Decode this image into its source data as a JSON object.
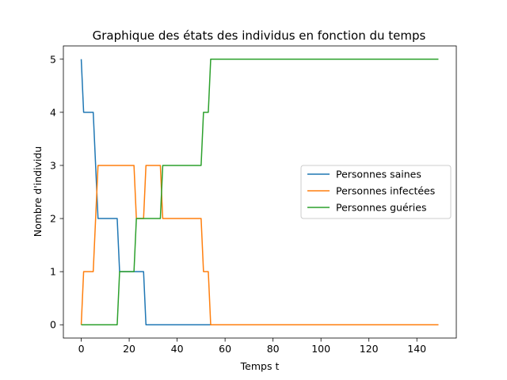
{
  "chart_data": {
    "type": "line",
    "title": "Graphique des états des individus en fonction du temps",
    "xlabel": "Temps t",
    "ylabel": "Nombre d'individu",
    "xlim": [
      -7.45,
      156.45
    ],
    "ylim": [
      -0.25,
      5.25
    ],
    "xticks": [
      0,
      20,
      40,
      60,
      80,
      100,
      120,
      140
    ],
    "yticks": [
      0,
      1,
      2,
      3,
      4,
      5
    ],
    "grid": false,
    "legend_position": "center-right",
    "series": [
      {
        "name": "Personnes saines",
        "color": "#1f77b4",
        "points": [
          [
            0,
            5
          ],
          [
            1,
            4
          ],
          [
            5,
            4
          ],
          [
            7,
            2
          ],
          [
            15,
            2
          ],
          [
            16,
            1
          ],
          [
            26,
            1
          ],
          [
            27,
            0
          ],
          [
            149,
            0
          ]
        ]
      },
      {
        "name": "Personnes infectées",
        "color": "#ff7f0e",
        "points": [
          [
            0,
            0
          ],
          [
            1,
            1
          ],
          [
            5,
            1
          ],
          [
            7,
            3
          ],
          [
            22,
            3
          ],
          [
            23,
            2
          ],
          [
            26,
            2
          ],
          [
            27,
            3
          ],
          [
            30,
            3
          ],
          [
            31,
            3
          ],
          [
            33,
            3
          ],
          [
            34,
            2
          ],
          [
            50,
            2
          ],
          [
            51,
            1
          ],
          [
            53,
            1
          ],
          [
            54,
            0
          ],
          [
            149,
            0
          ]
        ]
      },
      {
        "name": "Personnes guéries",
        "color": "#2ca02c",
        "points": [
          [
            0,
            0
          ],
          [
            15,
            0
          ],
          [
            16,
            1
          ],
          [
            22,
            1
          ],
          [
            23,
            2
          ],
          [
            33,
            2
          ],
          [
            34,
            3
          ],
          [
            50,
            3
          ],
          [
            51,
            4
          ],
          [
            53,
            4
          ],
          [
            54,
            5
          ],
          [
            149,
            5
          ]
        ]
      }
    ]
  }
}
